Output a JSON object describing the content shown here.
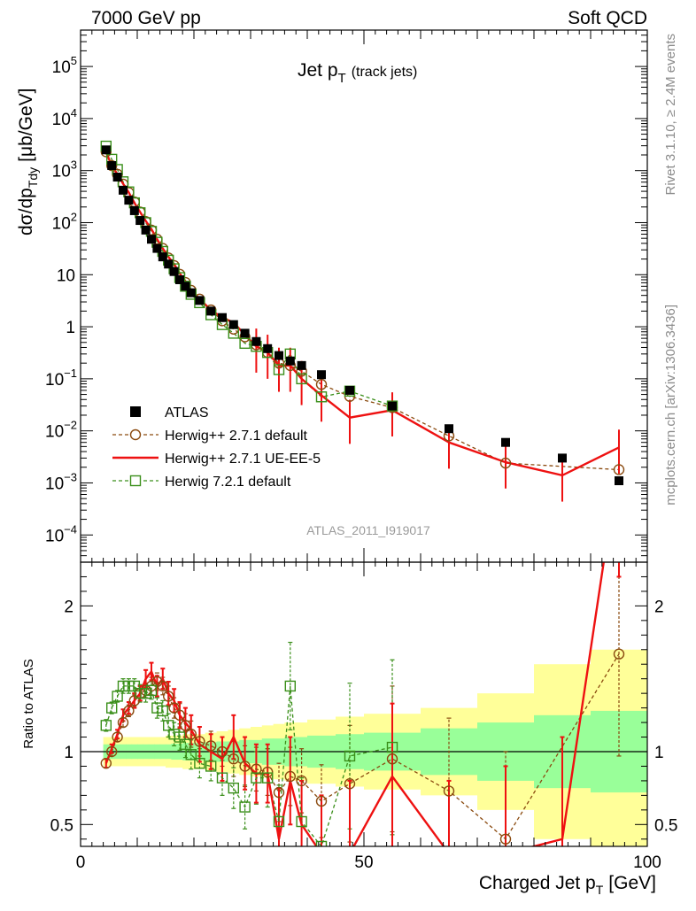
{
  "header": {
    "left_label": "7000 GeV pp",
    "right_label": "Soft QCD"
  },
  "side_labels": {
    "rivet": "Rivet 3.1.10, ≥ 2.4M events",
    "mcplots": "mcplots.cern.ch [arXiv:1306.3436]"
  },
  "analysis_id": "ATLAS_2011_I919017",
  "chart_data": [
    {
      "type": "scatter",
      "panel": "main",
      "title_main": "Jet p",
      "title_sub": "T",
      "title_extra": "(track jets)",
      "ylabel": "dσ/dp",
      "ylabel_sub": "Tdy",
      "ylabel_unit": "[μb/GeV]",
      "yscale": "log",
      "ylim": [
        3e-05,
        500000
      ],
      "xlim": [
        0,
        100
      ],
      "y_major_ticks": [
        {
          "v": 0.0001,
          "base": "10",
          "exp": "−4"
        },
        {
          "v": 0.001,
          "base": "10",
          "exp": "−3"
        },
        {
          "v": 0.01,
          "base": "10",
          "exp": "−2"
        },
        {
          "v": 0.1,
          "base": "10",
          "exp": "−1"
        },
        {
          "v": 1,
          "base": "1",
          "exp": ""
        },
        {
          "v": 10,
          "base": "10",
          "exp": ""
        },
        {
          "v": 100,
          "base": "10",
          "exp": "2"
        },
        {
          "v": 1000,
          "base": "10",
          "exp": "3"
        },
        {
          "v": 10000,
          "base": "10",
          "exp": "4"
        },
        {
          "v": 100000,
          "base": "10",
          "exp": "5"
        }
      ],
      "legend": {
        "placement": "lower-left",
        "entries": [
          "ATLAS",
          "Herwig++ 2.7.1 default",
          "Herwig++ 2.7.1 UE-EE-5",
          "Herwig 7.2.1 default"
        ]
      },
      "series": [
        {
          "name": "ATLAS",
          "marker": "filled-square",
          "color": "#000000",
          "x": [
            4.5,
            5.5,
            6.5,
            7.5,
            8.5,
            9.5,
            10.5,
            11.5,
            12.5,
            13.5,
            14.5,
            15.5,
            16.5,
            17.5,
            18.5,
            19.5,
            21,
            23,
            25,
            27,
            29,
            31,
            33,
            35,
            37,
            39,
            42.5,
            47.5,
            55,
            65,
            75,
            85,
            95
          ],
          "y": [
            2500,
            1250,
            750,
            420,
            270,
            170,
            110,
            72,
            48,
            32,
            22,
            16,
            11.5,
            8,
            6,
            4.5,
            3.2,
            2,
            1.5,
            1.1,
            0.75,
            0.52,
            0.38,
            0.28,
            0.22,
            0.18,
            0.12,
            0.06,
            0.03,
            0.011,
            0.006,
            0.003,
            0.0011
          ]
        },
        {
          "name": "Herwig++ 2.7.1 default",
          "marker": "open-circle",
          "line": "dashed",
          "color": "#8a4a0f",
          "x": [
            4.5,
            5.5,
            6.5,
            7.5,
            8.5,
            9.5,
            10.5,
            11.5,
            12.5,
            13.5,
            14.5,
            15.5,
            16.5,
            17.5,
            18.5,
            19.5,
            21,
            23,
            25,
            27,
            29,
            31,
            33,
            35,
            37,
            39,
            42.5,
            47.5,
            55,
            65,
            75,
            95
          ],
          "y": [
            2300,
            1250,
            850,
            550,
            380,
            250,
            160,
            105,
            72,
            48,
            32,
            21,
            15,
            10.2,
            7.1,
            5,
            3.4,
            2.1,
            1.3,
            0.9,
            0.64,
            0.45,
            0.32,
            0.2,
            0.18,
            0.14,
            0.078,
            0.046,
            0.028,
            0.008,
            0.0024,
            0.0018
          ]
        },
        {
          "name": "Herwig++ 2.7.1 UE-EE-5",
          "marker": "none",
          "line": "solid",
          "color": "#ee1111",
          "x": [
            4.5,
            5.5,
            6.5,
            7.5,
            8.5,
            9.5,
            10.5,
            11.5,
            12.5,
            13.5,
            14.5,
            15.5,
            16.5,
            17.5,
            18.5,
            19.5,
            21,
            23,
            25,
            27,
            29,
            31,
            33,
            35,
            37,
            39,
            42.5,
            47.5,
            55,
            65,
            75,
            85,
            95
          ],
          "y": [
            2250,
            1250,
            850,
            560,
            380,
            240,
            160,
            108,
            75,
            48,
            32,
            22,
            16,
            10.5,
            7.5,
            5.1,
            3.4,
            2.1,
            1.5,
            1.2,
            0.7,
            0.42,
            0.32,
            0.18,
            0.18,
            0.1,
            0.048,
            0.018,
            0.025,
            0.006,
            0.0025,
            0.0014,
            0.0048
          ]
        },
        {
          "name": "Herwig 7.2.1 default",
          "marker": "open-square",
          "line": "dashed",
          "color": "#3a8f1a",
          "x": [
            4.5,
            5.5,
            6.5,
            7.5,
            8.5,
            9.5,
            10.5,
            11.5,
            12.5,
            13.5,
            14.5,
            15.5,
            16.5,
            17.5,
            18.5,
            19.5,
            21,
            23,
            25,
            27,
            29,
            31,
            33,
            35,
            37,
            39,
            42.5,
            47.5,
            55
          ],
          "y": [
            2950,
            1650,
            1050,
            610,
            390,
            240,
            155,
            100,
            68,
            42,
            28,
            19,
            13,
            8.8,
            6,
            4.2,
            2.9,
            1.7,
            1.1,
            0.75,
            0.48,
            0.42,
            0.32,
            0.15,
            0.3,
            0.1,
            0.045,
            0.058,
            0.03
          ]
        }
      ]
    },
    {
      "type": "line",
      "panel": "ratio",
      "xlabel": "Charged Jet p",
      "xlabel_sub": "T",
      "xlabel_unit": "[GeV]",
      "ylabel": "Ratio to ATLAS",
      "ylim": [
        0.35,
        2.3
      ],
      "xlim": [
        0,
        100
      ],
      "y_ticks": [
        0.5,
        1,
        2
      ],
      "x_ticks": [
        0,
        50,
        100
      ],
      "reference_line": 1,
      "bands": {
        "x_edges": [
          4,
          5,
          6,
          7,
          8,
          9,
          10,
          11,
          12,
          13,
          14,
          15,
          16,
          17,
          18,
          19,
          20,
          22,
          24,
          26,
          28,
          30,
          32,
          34,
          36,
          38,
          40,
          45,
          50,
          60,
          70,
          80,
          90,
          100
        ],
        "green_half_width": [
          0.05,
          0.05,
          0.05,
          0.05,
          0.05,
          0.05,
          0.05,
          0.05,
          0.05,
          0.05,
          0.05,
          0.05,
          0.055,
          0.055,
          0.06,
          0.06,
          0.06,
          0.065,
          0.07,
          0.07,
          0.08,
          0.08,
          0.09,
          0.09,
          0.1,
          0.1,
          0.11,
          0.12,
          0.13,
          0.16,
          0.2,
          0.25,
          0.28
        ],
        "yellow_half_width": [
          0.1,
          0.1,
          0.1,
          0.1,
          0.1,
          0.1,
          0.1,
          0.1,
          0.1,
          0.1,
          0.1,
          0.11,
          0.11,
          0.11,
          0.12,
          0.12,
          0.12,
          0.13,
          0.14,
          0.15,
          0.16,
          0.17,
          0.18,
          0.19,
          0.2,
          0.2,
          0.22,
          0.24,
          0.26,
          0.3,
          0.4,
          0.6,
          0.7
        ]
      },
      "series": [
        {
          "name": "Herwig++ 2.7.1 default",
          "color": "#8a4a0f",
          "x": [
            4.5,
            5.5,
            6.5,
            7.5,
            8.5,
            9.5,
            10.5,
            11.5,
            12.5,
            13.5,
            14.5,
            15.5,
            16.5,
            17.5,
            18.5,
            19.5,
            21,
            23,
            25,
            27,
            29,
            31,
            33,
            35,
            37,
            39,
            42.5,
            47.5,
            55,
            65,
            75,
            95
          ],
          "y": [
            0.92,
            1.0,
            1.1,
            1.2,
            1.28,
            1.35,
            1.4,
            1.42,
            1.45,
            1.48,
            1.45,
            1.38,
            1.3,
            1.25,
            1.18,
            1.12,
            1.07,
            1.04,
            1.0,
            0.95,
            0.9,
            0.88,
            0.86,
            0.72,
            0.83,
            0.8,
            0.66,
            0.78,
            0.95,
            0.73,
            0.4,
            1.67
          ],
          "err": [
            0.03,
            0.03,
            0.03,
            0.03,
            0.04,
            0.04,
            0.05,
            0.05,
            0.06,
            0.06,
            0.06,
            0.07,
            0.07,
            0.08,
            0.08,
            0.09,
            0.1,
            0.1,
            0.1,
            0.12,
            0.14,
            0.15,
            0.16,
            0.2,
            0.2,
            0.22,
            0.25,
            0.4,
            0.5,
            0.5,
            0.6,
            0.7
          ]
        },
        {
          "name": "Herwig++ 2.7.1 UE-EE-5",
          "color": "#ee1111",
          "x": [
            4.5,
            5.5,
            6.5,
            7.5,
            8.5,
            9.5,
            10.5,
            11.5,
            12.5,
            13.5,
            14.5,
            15.5,
            16.5,
            17.5,
            18.5,
            19.5,
            21,
            23,
            25,
            27,
            29,
            31,
            33,
            35,
            37,
            39,
            42.5,
            47.5,
            55,
            65,
            75,
            85,
            95
          ],
          "y": [
            0.92,
            1.02,
            1.12,
            1.25,
            1.3,
            1.35,
            1.4,
            1.5,
            1.55,
            1.45,
            1.5,
            1.4,
            1.35,
            1.25,
            1.2,
            1.15,
            1.05,
            1.0,
            0.95,
            1.1,
            0.92,
            0.85,
            0.85,
            0.4,
            0.8,
            0.5,
            0.3,
            0.3,
            0.83,
            0.3,
            0.3,
            0.4,
            3.0
          ],
          "err": [
            0.03,
            0.03,
            0.03,
            0.04,
            0.04,
            0.05,
            0.05,
            0.06,
            0.06,
            0.07,
            0.07,
            0.08,
            0.08,
            0.09,
            0.1,
            0.1,
            0.12,
            0.12,
            0.15,
            0.15,
            0.18,
            0.2,
            0.2,
            0.35,
            0.3,
            0.3,
            0.4,
            0.5,
            0.5,
            0.5,
            0.6,
            0.7,
            0.8
          ]
        },
        {
          "name": "Herwig 7.2.1 default",
          "color": "#3a8f1a",
          "x": [
            4.5,
            5.5,
            6.5,
            7.5,
            8.5,
            9.5,
            10.5,
            11.5,
            12.5,
            13.5,
            14.5,
            15.5,
            16.5,
            17.5,
            18.5,
            19.5,
            21,
            23,
            25,
            27,
            29,
            31,
            33,
            35,
            37,
            39,
            42.5,
            47.5,
            55
          ],
          "y": [
            1.18,
            1.3,
            1.38,
            1.45,
            1.45,
            1.45,
            1.4,
            1.4,
            1.42,
            1.3,
            1.28,
            1.18,
            1.12,
            1.1,
            1.05,
            0.98,
            0.92,
            0.9,
            0.82,
            0.75,
            0.62,
            0.82,
            0.82,
            0.52,
            1.45,
            0.52,
            0.35,
            0.97,
            1.03
          ],
          "err": [
            0.04,
            0.04,
            0.04,
            0.05,
            0.05,
            0.05,
            0.06,
            0.06,
            0.06,
            0.07,
            0.07,
            0.08,
            0.08,
            0.09,
            0.09,
            0.1,
            0.1,
            0.1,
            0.12,
            0.14,
            0.15,
            0.18,
            0.2,
            0.25,
            0.3,
            0.3,
            0.35,
            0.5,
            0.6
          ]
        }
      ]
    }
  ]
}
